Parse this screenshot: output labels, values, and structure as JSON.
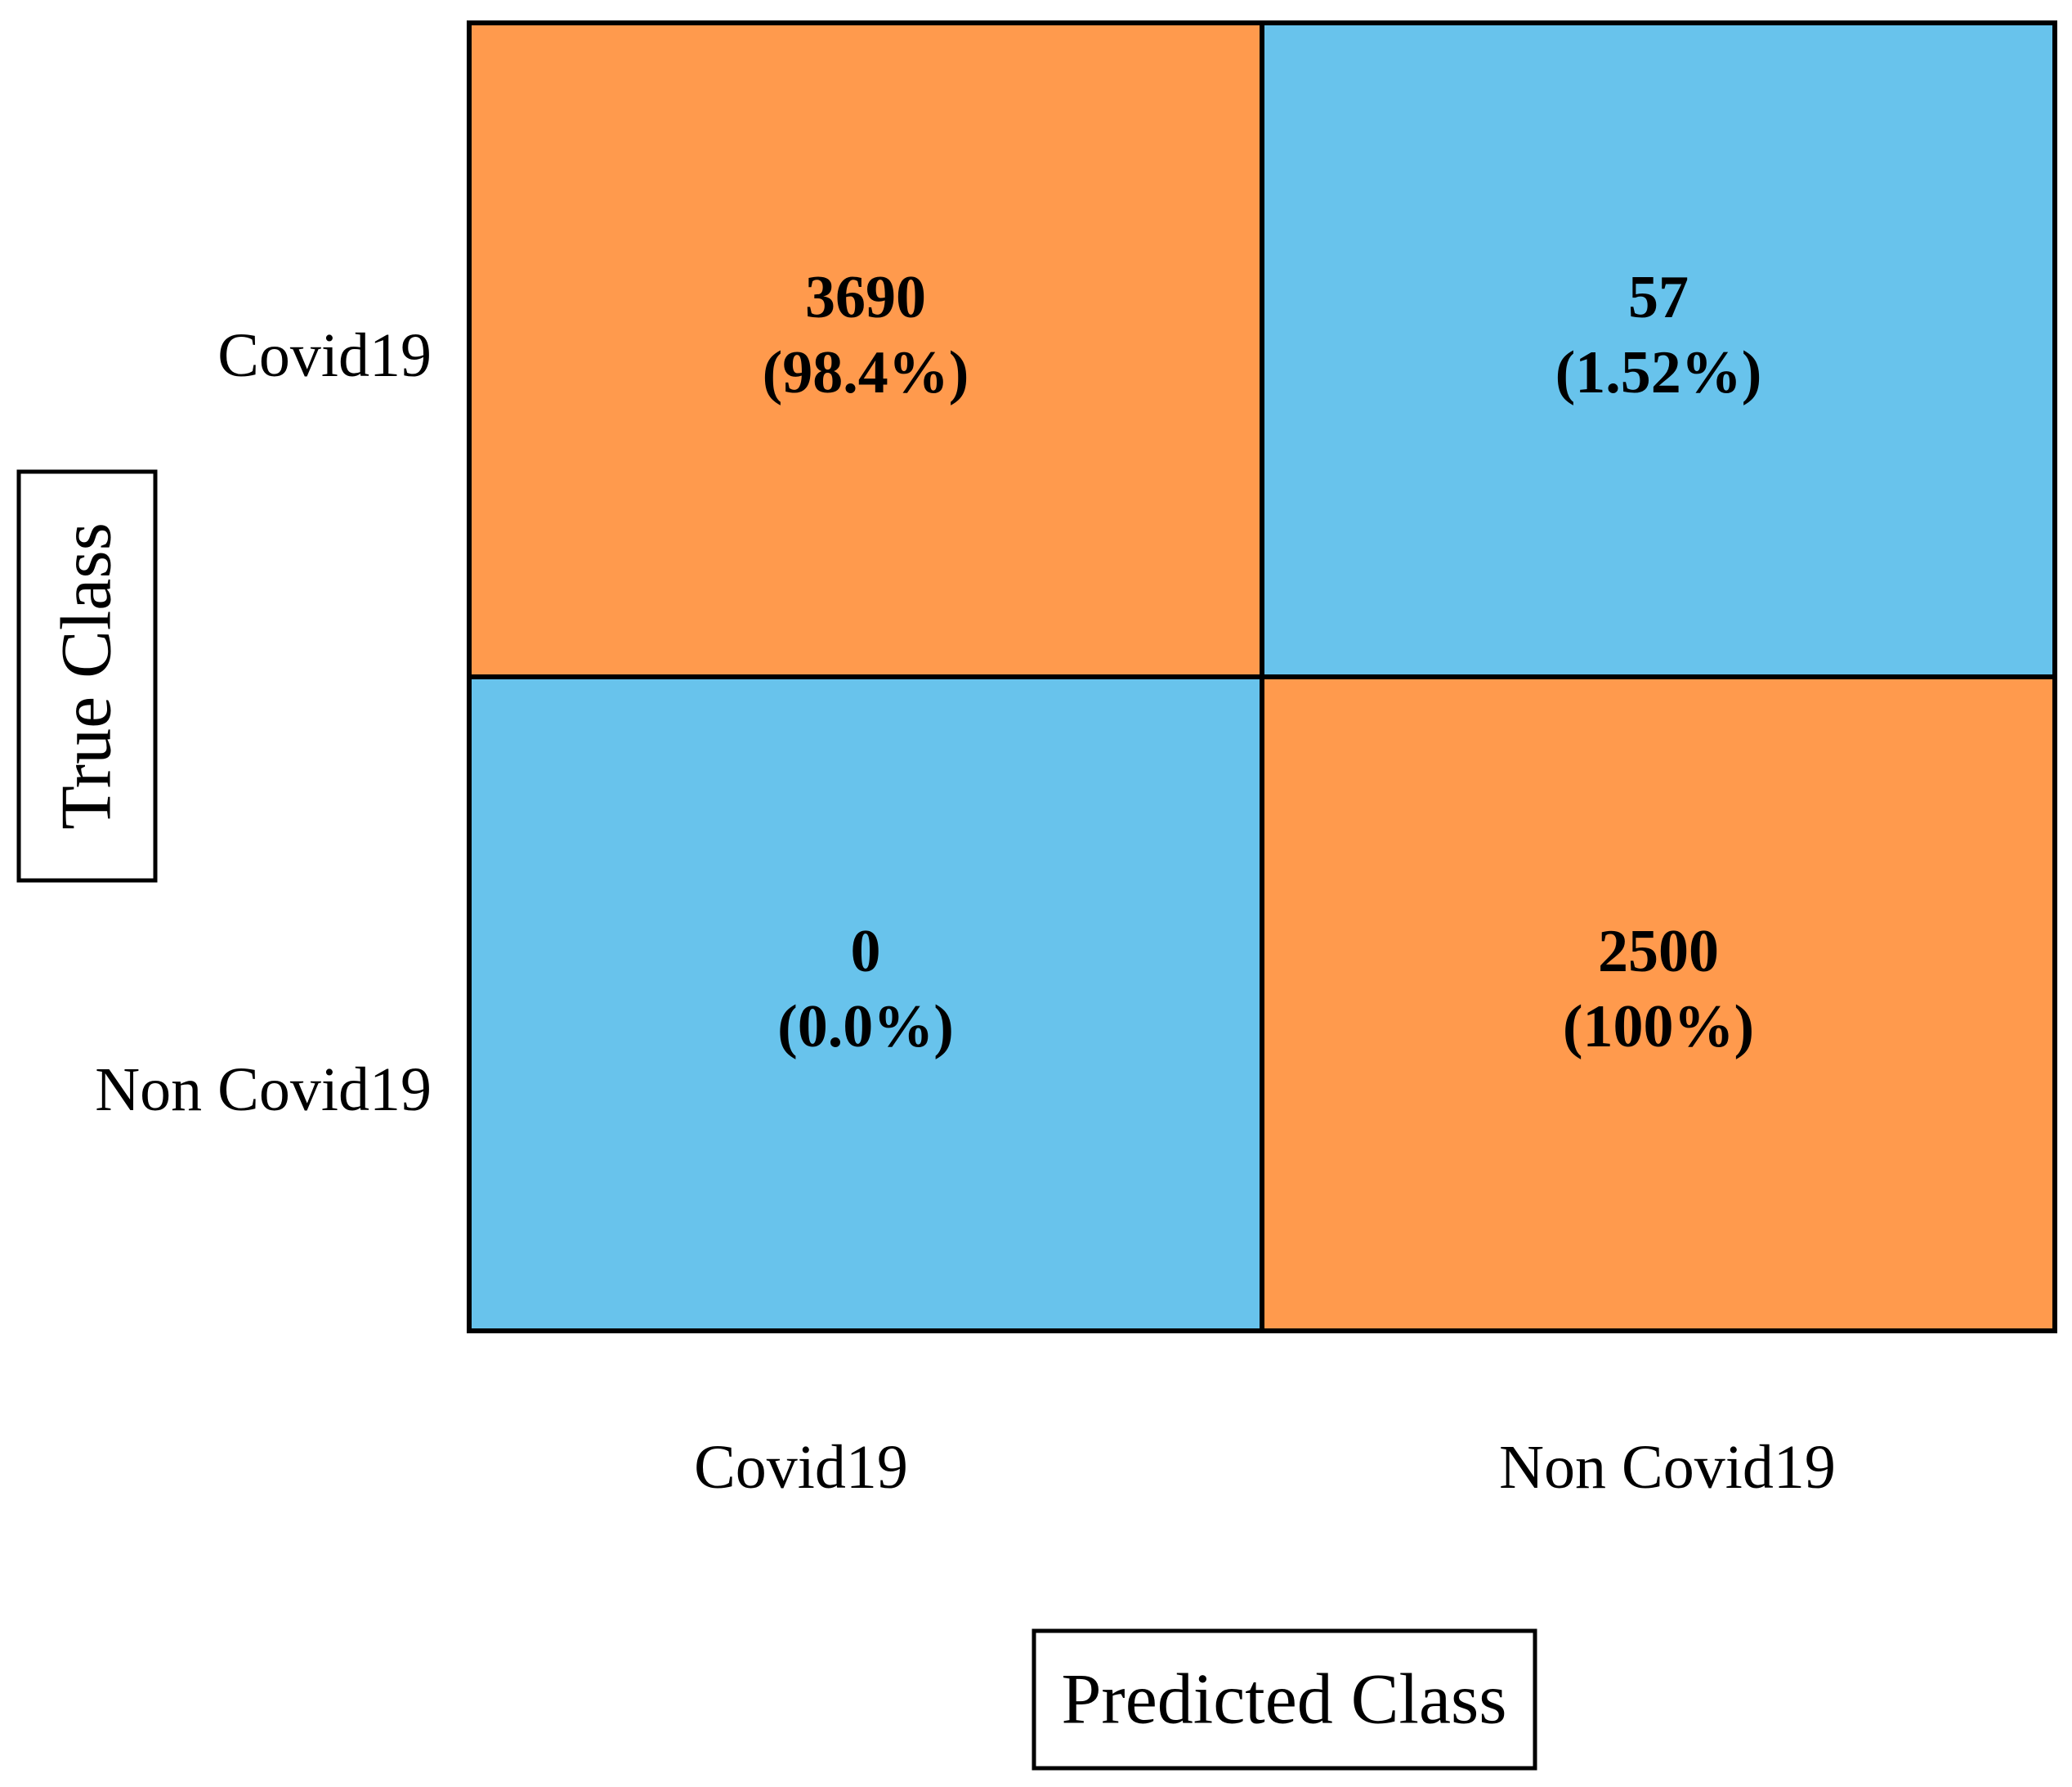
{
  "chart_data": {
    "type": "heatmap",
    "xlabel": "Predicted Class",
    "ylabel": "True Class",
    "x_categories": [
      "Covid19",
      "Non Covid19"
    ],
    "y_categories": [
      "Covid19",
      "Non Covid19"
    ],
    "cells": [
      {
        "row": 0,
        "col": 0,
        "value": 3690,
        "percent": "(98.4%)",
        "color": "#FF9A4D"
      },
      {
        "row": 0,
        "col": 1,
        "value": 57,
        "percent": "(1.52%)",
        "color": "#68C3EC"
      },
      {
        "row": 1,
        "col": 0,
        "value": 0,
        "percent": "(0.0%)",
        "color": "#68C3EC"
      },
      {
        "row": 1,
        "col": 1,
        "value": 2500,
        "percent": "(100%)",
        "color": "#FF9A4D"
      }
    ]
  }
}
